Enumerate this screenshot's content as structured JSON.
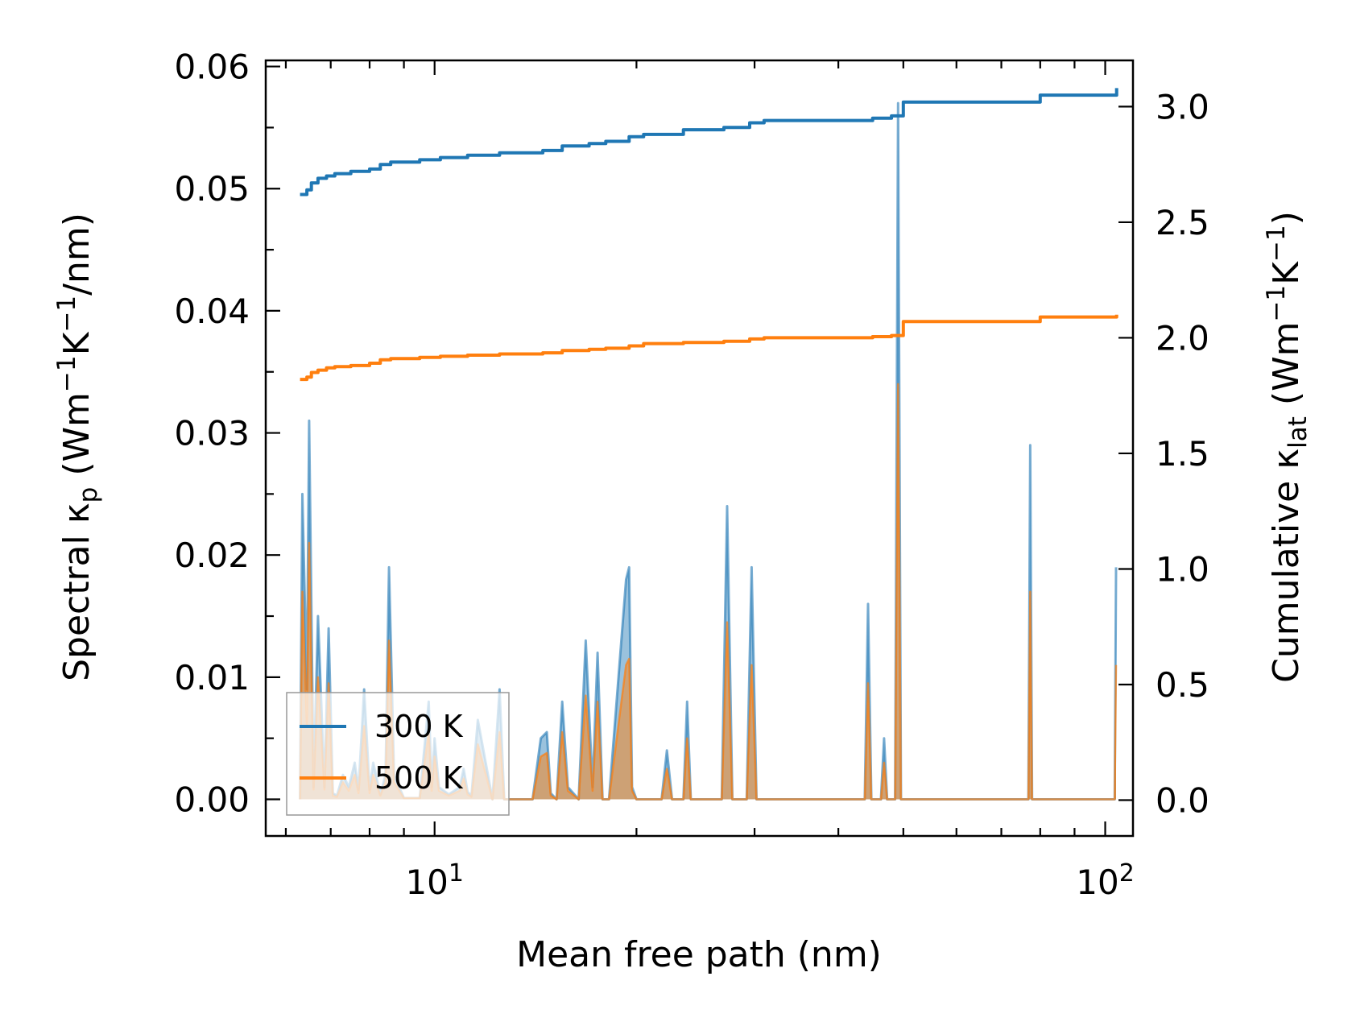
{
  "chart_data": {
    "type": "line",
    "xlabel": "Mean free path (nm)",
    "xscale": "log",
    "xlim": [
      5.6,
      110
    ],
    "x_tick_labels": [
      {
        "value": 10,
        "base": "10",
        "exp": "1"
      },
      {
        "value": 100,
        "base": "10",
        "exp": "2"
      }
    ],
    "ylabel_left": {
      "main": "Spectral κ",
      "sub": "p",
      "units_open": " (Wm",
      "sup1": "−1",
      "mid": "K",
      "sup2": "−1",
      "tail": "/nm)"
    },
    "ylim_left": [
      -0.003,
      0.0605
    ],
    "yticks_left": [
      "0.00",
      "0.01",
      "0.02",
      "0.03",
      "0.04",
      "0.05",
      "0.06"
    ],
    "ylabel_right": {
      "main": "Cumulative κ",
      "sub": "lat",
      "units_open": " (Wm",
      "sup1": "−1",
      "mid": "K",
      "sup2": "−1",
      "tail": ")"
    },
    "ylim_right": [
      -0.155,
      3.2
    ],
    "yticks_right": [
      "0.0",
      "0.5",
      "1.0",
      "1.5",
      "2.0",
      "2.5",
      "3.0"
    ],
    "legend": {
      "position": "lower-left",
      "entries": [
        "300 K",
        "500 K"
      ]
    },
    "colors": {
      "s300": "#1f77b4",
      "s500": "#ff7f0e"
    },
    "series": [
      {
        "name": "300 K",
        "axis": "right",
        "kind": "cumulative-step",
        "x": [
          6.3,
          6.45,
          6.55,
          6.7,
          6.9,
          7.1,
          7.5,
          8.0,
          8.3,
          8.6,
          9.5,
          10.2,
          11.2,
          12.5,
          14.5,
          15.5,
          17.0,
          18.0,
          19.5,
          20.5,
          23.5,
          27.0,
          29.5,
          31.0,
          45.0,
          48.0,
          50.0,
          78.0,
          80.0,
          100.0,
          104.0
        ],
        "values": [
          2.62,
          2.64,
          2.67,
          2.69,
          2.7,
          2.71,
          2.72,
          2.73,
          2.75,
          2.76,
          2.77,
          2.78,
          2.79,
          2.8,
          2.81,
          2.83,
          2.84,
          2.85,
          2.87,
          2.88,
          2.9,
          2.91,
          2.93,
          2.94,
          2.95,
          2.96,
          3.02,
          3.02,
          3.05,
          3.05,
          3.08
        ]
      },
      {
        "name": "500 K",
        "axis": "right",
        "kind": "cumulative-step",
        "x": [
          6.3,
          6.45,
          6.55,
          6.7,
          6.9,
          7.1,
          7.5,
          8.0,
          8.3,
          8.6,
          9.5,
          10.2,
          11.2,
          12.5,
          14.5,
          15.5,
          17.0,
          18.0,
          19.5,
          20.5,
          23.5,
          27.0,
          29.5,
          31.0,
          45.0,
          48.0,
          50.0,
          78.0,
          80.0,
          100.0,
          104.0
        ],
        "values": [
          1.82,
          1.83,
          1.85,
          1.86,
          1.87,
          1.875,
          1.88,
          1.89,
          1.905,
          1.91,
          1.915,
          1.92,
          1.925,
          1.93,
          1.935,
          1.945,
          1.95,
          1.955,
          1.965,
          1.975,
          1.98,
          1.985,
          1.995,
          2.0,
          2.005,
          2.01,
          2.07,
          2.07,
          2.09,
          2.09,
          2.1
        ]
      },
      {
        "name": "300 K",
        "axis": "left",
        "kind": "spectral-filled",
        "x": [
          6.3,
          6.35,
          6.45,
          6.5,
          6.6,
          6.7,
          6.85,
          6.95,
          7.05,
          7.15,
          7.3,
          7.45,
          7.6,
          7.7,
          7.85,
          8.0,
          8.1,
          8.3,
          8.45,
          8.55,
          8.7,
          9.0,
          9.5,
          9.8,
          9.9,
          10.0,
          10.15,
          10.5,
          10.9,
          11.05,
          11.2,
          11.35,
          11.6,
          12.2,
          12.5,
          12.7,
          14.0,
          14.4,
          14.7,
          14.9,
          15.2,
          15.5,
          15.8,
          16.4,
          16.8,
          17.2,
          17.5,
          17.8,
          18.2,
          19.3,
          19.5,
          19.7,
          20.0,
          21.8,
          22.2,
          22.6,
          23.5,
          23.8,
          24.1,
          26.8,
          27.3,
          27.8,
          29.2,
          29.7,
          30.2,
          30.7,
          43.8,
          44.3,
          44.8,
          46.3,
          46.8,
          47.3,
          48.6,
          49.1,
          49.6,
          50.1,
          76.8,
          77.3,
          77.8,
          103.3,
          103.8
        ],
        "values": [
          0,
          0.025,
          0.009,
          0.031,
          0.001,
          0.015,
          0.001,
          0.014,
          0.0005,
          0.0003,
          0.002,
          0.001,
          0.003,
          0.0008,
          0.009,
          0.0008,
          0.003,
          0.0004,
          0.002,
          0.019,
          0.002,
          0.0001,
          0.0001,
          0.008,
          0.001,
          0.005,
          0.001,
          0.0004,
          0.001,
          0.0025,
          0.0006,
          0.0003,
          0.0065,
          0,
          0.009,
          0,
          0,
          0.005,
          0.0055,
          0.0005,
          0,
          0.008,
          0.001,
          0,
          0.013,
          0.001,
          0.012,
          0,
          0,
          0.018,
          0.019,
          0.001,
          0,
          0,
          0.004,
          0,
          0,
          0.008,
          0,
          0,
          0.024,
          0,
          0,
          0.019,
          0,
          0,
          0,
          0.016,
          0,
          0,
          0.005,
          0,
          0,
          0.057,
          0,
          0,
          0,
          0.029,
          0,
          0,
          0.019
        ]
      },
      {
        "name": "500 K",
        "axis": "left",
        "kind": "spectral-filled",
        "x": [
          6.3,
          6.35,
          6.45,
          6.5,
          6.6,
          6.7,
          6.85,
          6.95,
          7.05,
          7.15,
          7.3,
          7.45,
          7.6,
          7.7,
          7.85,
          8.0,
          8.1,
          8.3,
          8.45,
          8.55,
          8.7,
          9.0,
          9.5,
          9.8,
          9.9,
          10.0,
          10.15,
          10.5,
          10.9,
          11.05,
          11.2,
          11.35,
          11.6,
          12.2,
          12.5,
          12.7,
          14.0,
          14.4,
          14.7,
          14.9,
          15.2,
          15.5,
          15.8,
          16.4,
          16.8,
          17.2,
          17.5,
          17.8,
          18.2,
          19.3,
          19.5,
          19.7,
          20.0,
          21.8,
          22.2,
          22.6,
          23.5,
          23.8,
          24.1,
          26.8,
          27.3,
          27.8,
          29.2,
          29.7,
          30.2,
          30.7,
          43.8,
          44.3,
          44.8,
          46.3,
          46.8,
          47.3,
          48.6,
          49.1,
          49.6,
          50.1,
          76.8,
          77.3,
          77.8,
          103.3,
          103.8
        ],
        "values": [
          0,
          0.017,
          0.006,
          0.021,
          0.0008,
          0.01,
          0.0008,
          0.0095,
          0.0003,
          0.0002,
          0.0014,
          0.0007,
          0.002,
          0.0005,
          0.006,
          0.0005,
          0.002,
          0.0003,
          0.0014,
          0.013,
          0.0014,
          0.0001,
          0.0001,
          0.0055,
          0.0007,
          0.0035,
          0.0007,
          0.0003,
          0.0007,
          0.0017,
          0.0004,
          0.0002,
          0.0045,
          0,
          0.0055,
          0,
          0,
          0.0035,
          0.0038,
          0.0003,
          0,
          0.0055,
          0.0007,
          0,
          0.0085,
          0.0007,
          0.008,
          0,
          0,
          0.011,
          0.0115,
          0.0007,
          0,
          0,
          0.0025,
          0,
          0,
          0.005,
          0,
          0,
          0.0145,
          0,
          0,
          0.011,
          0,
          0,
          0,
          0.0095,
          0,
          0,
          0.003,
          0,
          0,
          0.034,
          0,
          0,
          0,
          0.017,
          0,
          0,
          0.011
        ]
      }
    ]
  }
}
